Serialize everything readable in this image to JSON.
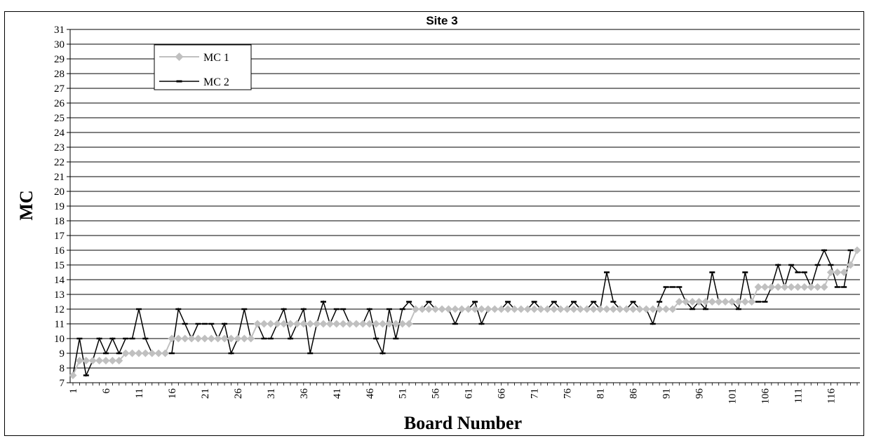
{
  "chart_data": {
    "type": "line",
    "title": "Site 3",
    "xlabel": "Board Number",
    "ylabel": "MC",
    "ylim": [
      7,
      31
    ],
    "yticks": [
      7,
      8,
      9,
      10,
      11,
      12,
      13,
      14,
      15,
      16,
      17,
      18,
      19,
      20,
      21,
      22,
      23,
      24,
      25,
      26,
      27,
      28,
      29,
      30,
      31
    ],
    "xlim": [
      1,
      120
    ],
    "xticks": [
      1,
      6,
      11,
      16,
      21,
      26,
      31,
      36,
      41,
      46,
      51,
      56,
      61,
      66,
      71,
      76,
      81,
      86,
      91,
      96,
      101,
      106,
      111,
      116
    ],
    "grid": "horizontal",
    "legend_position": "top-left",
    "series": [
      {
        "name": "MC 1",
        "color": "#c0c0c0",
        "marker": "diamond",
        "values": [
          7.5,
          8.5,
          8.5,
          8.5,
          8.5,
          8.5,
          8.5,
          8.5,
          9,
          9,
          9,
          9,
          9,
          9,
          9,
          10,
          10,
          10,
          10,
          10,
          10,
          10,
          10,
          10,
          10,
          10,
          10,
          10,
          11,
          11,
          11,
          11,
          11,
          11,
          11,
          11,
          11,
          11,
          11,
          11,
          11,
          11,
          11,
          11,
          11,
          11,
          11,
          11,
          11,
          11,
          11,
          11,
          12,
          12,
          12,
          12,
          12,
          12,
          12,
          12,
          12,
          12,
          12,
          12,
          12,
          12,
          12,
          12,
          12,
          12,
          12,
          12,
          12,
          12,
          12,
          12,
          12,
          12,
          12,
          12,
          12,
          12,
          12,
          12,
          12,
          12,
          12,
          12,
          12,
          12,
          12,
          12,
          12.5,
          12.5,
          12.5,
          12.5,
          12.5,
          12.5,
          12.5,
          12.5,
          12.5,
          12.5,
          12.5,
          12.5,
          13.5,
          13.5,
          13.5,
          13.5,
          13.5,
          13.5,
          13.5,
          13.5,
          13.5,
          13.5,
          13.5,
          14.5,
          14.5,
          14.5,
          15,
          16
        ]
      },
      {
        "name": "MC 2",
        "color": "#000000",
        "marker": "dash",
        "values": [
          7.5,
          10,
          7.5,
          8.5,
          10,
          9,
          10,
          9,
          10,
          10,
          12,
          10,
          9,
          9,
          9,
          9,
          12,
          11,
          10,
          11,
          11,
          11,
          10,
          11,
          9,
          10,
          12,
          10,
          11,
          10,
          10,
          11,
          12,
          10,
          11,
          12,
          9,
          11,
          12.5,
          11,
          12,
          12,
          11,
          11,
          11,
          12,
          10,
          9,
          12,
          10,
          12,
          12.5,
          12,
          12,
          12.5,
          12,
          12,
          12,
          11,
          12,
          12,
          12.5,
          11,
          12,
          12,
          12,
          12.5,
          12,
          12,
          12,
          12.5,
          12,
          12,
          12.5,
          12,
          12,
          12.5,
          12,
          12,
          12.5,
          12,
          14.5,
          12.5,
          12,
          12,
          12.5,
          12,
          12,
          11,
          12.5,
          13.5,
          13.5,
          13.5,
          12.5,
          12,
          12.5,
          12,
          14.5,
          12.5,
          12.5,
          12.5,
          12,
          14.5,
          12.5,
          12.5,
          12.5,
          13.5,
          15,
          13.5,
          15,
          14.5,
          14.5,
          13.5,
          15,
          16,
          15,
          13.5,
          13.5,
          16
        ]
      }
    ]
  }
}
